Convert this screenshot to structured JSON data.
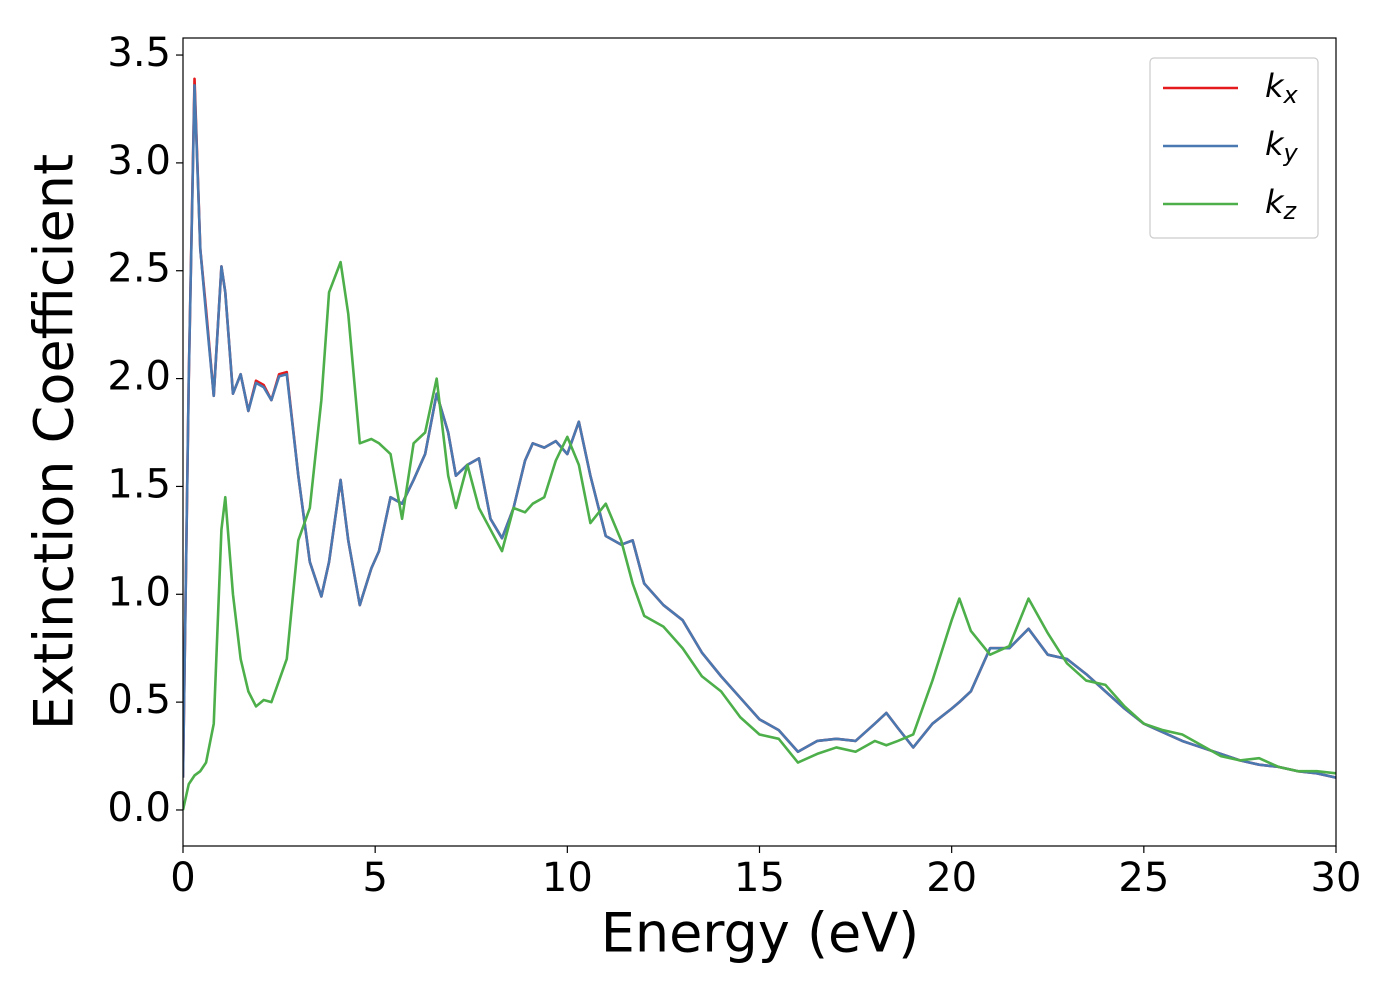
{
  "chart_data": {
    "type": "line",
    "xlabel": "Energy (eV)",
    "ylabel": "Extinction Coefficient",
    "x": [
      0,
      0.15,
      0.3,
      0.45,
      0.6,
      0.8,
      1.0,
      1.1,
      1.3,
      1.5,
      1.7,
      1.9,
      2.1,
      2.3,
      2.5,
      2.7,
      3.0,
      3.3,
      3.6,
      3.8,
      4.1,
      4.3,
      4.6,
      4.9,
      5.1,
      5.4,
      5.7,
      6.0,
      6.3,
      6.6,
      6.9,
      7.1,
      7.4,
      7.7,
      8.0,
      8.3,
      8.6,
      8.9,
      9.1,
      9.4,
      9.7,
      10.0,
      10.3,
      10.6,
      11.0,
      11.4,
      11.7,
      12.0,
      12.5,
      13.0,
      13.5,
      14.0,
      14.5,
      15.0,
      15.5,
      16.0,
      16.5,
      17.0,
      17.5,
      18.0,
      18.3,
      18.6,
      19.0,
      19.5,
      20.0,
      20.2,
      20.5,
      21.0,
      21.5,
      22.0,
      22.5,
      23.0,
      23.5,
      24.0,
      24.5,
      25.0,
      25.5,
      26.0,
      26.5,
      27.0,
      27.5,
      28.0,
      28.5,
      29.0,
      29.5,
      30.0
    ],
    "series": [
      {
        "name": "kx",
        "color": "#e41a1c",
        "values": [
          0.15,
          2.0,
          3.39,
          2.6,
          2.32,
          1.92,
          2.52,
          2.4,
          1.93,
          2.02,
          1.85,
          1.99,
          1.97,
          1.9,
          2.02,
          2.03,
          1.55,
          1.15,
          0.99,
          1.15,
          1.53,
          1.25,
          0.95,
          1.12,
          1.2,
          1.45,
          1.42,
          1.53,
          1.65,
          1.93,
          1.75,
          1.55,
          1.6,
          1.63,
          1.35,
          1.26,
          1.4,
          1.62,
          1.7,
          1.68,
          1.71,
          1.65,
          1.8,
          1.55,
          1.27,
          1.23,
          1.25,
          1.05,
          0.95,
          0.88,
          0.73,
          0.62,
          0.52,
          0.42,
          0.37,
          0.27,
          0.32,
          0.33,
          0.32,
          0.4,
          0.45,
          0.38,
          0.29,
          0.4,
          0.47,
          0.5,
          0.55,
          0.75,
          0.75,
          0.84,
          0.72,
          0.7,
          0.63,
          0.55,
          0.47,
          0.4,
          0.36,
          0.32,
          0.29,
          0.26,
          0.23,
          0.21,
          0.2,
          0.18,
          0.17,
          0.15
        ]
      },
      {
        "name": "ky",
        "color": "#4a78b0",
        "values": [
          0.15,
          2.0,
          3.36,
          2.6,
          2.3,
          1.92,
          2.52,
          2.4,
          1.93,
          2.02,
          1.85,
          1.98,
          1.96,
          1.9,
          2.01,
          2.02,
          1.55,
          1.15,
          0.99,
          1.15,
          1.53,
          1.25,
          0.95,
          1.12,
          1.2,
          1.45,
          1.42,
          1.53,
          1.65,
          1.93,
          1.75,
          1.55,
          1.6,
          1.63,
          1.35,
          1.26,
          1.4,
          1.62,
          1.7,
          1.68,
          1.71,
          1.65,
          1.8,
          1.55,
          1.27,
          1.23,
          1.25,
          1.05,
          0.95,
          0.88,
          0.73,
          0.62,
          0.52,
          0.42,
          0.37,
          0.27,
          0.32,
          0.33,
          0.32,
          0.4,
          0.45,
          0.38,
          0.29,
          0.4,
          0.47,
          0.5,
          0.55,
          0.75,
          0.75,
          0.84,
          0.72,
          0.7,
          0.63,
          0.55,
          0.47,
          0.4,
          0.36,
          0.32,
          0.29,
          0.26,
          0.23,
          0.21,
          0.2,
          0.18,
          0.17,
          0.15
        ]
      },
      {
        "name": "kz",
        "color": "#4daf4a",
        "values": [
          0.0,
          0.12,
          0.16,
          0.18,
          0.22,
          0.4,
          1.3,
          1.45,
          1.0,
          0.7,
          0.55,
          0.48,
          0.51,
          0.5,
          0.6,
          0.7,
          1.25,
          1.4,
          1.9,
          2.4,
          2.54,
          2.3,
          1.7,
          1.72,
          1.7,
          1.65,
          1.35,
          1.7,
          1.75,
          2.0,
          1.55,
          1.4,
          1.6,
          1.4,
          1.3,
          1.2,
          1.4,
          1.38,
          1.42,
          1.45,
          1.62,
          1.73,
          1.6,
          1.33,
          1.42,
          1.25,
          1.05,
          0.9,
          0.85,
          0.75,
          0.62,
          0.55,
          0.43,
          0.35,
          0.33,
          0.22,
          0.26,
          0.29,
          0.27,
          0.32,
          0.3,
          0.32,
          0.35,
          0.6,
          0.88,
          0.98,
          0.83,
          0.72,
          0.76,
          0.98,
          0.82,
          0.68,
          0.6,
          0.58,
          0.48,
          0.4,
          0.37,
          0.35,
          0.3,
          0.25,
          0.23,
          0.24,
          0.2,
          0.18,
          0.18,
          0.17
        ]
      }
    ],
    "xlim": [
      0,
      30
    ],
    "xticks": [
      0,
      5,
      10,
      15,
      20,
      25,
      30
    ],
    "ylim": [
      -0.167,
      3.579
    ],
    "yticks": [
      {
        "value": 0,
        "label": "0.0"
      },
      0.5,
      {
        "value": 1,
        "label": "1.0"
      },
      1.5,
      {
        "value": 2,
        "label": "2.0"
      },
      2.5,
      {
        "value": 3,
        "label": "3.0"
      },
      3.5
    ],
    "grid": false,
    "legend": "upper right"
  }
}
